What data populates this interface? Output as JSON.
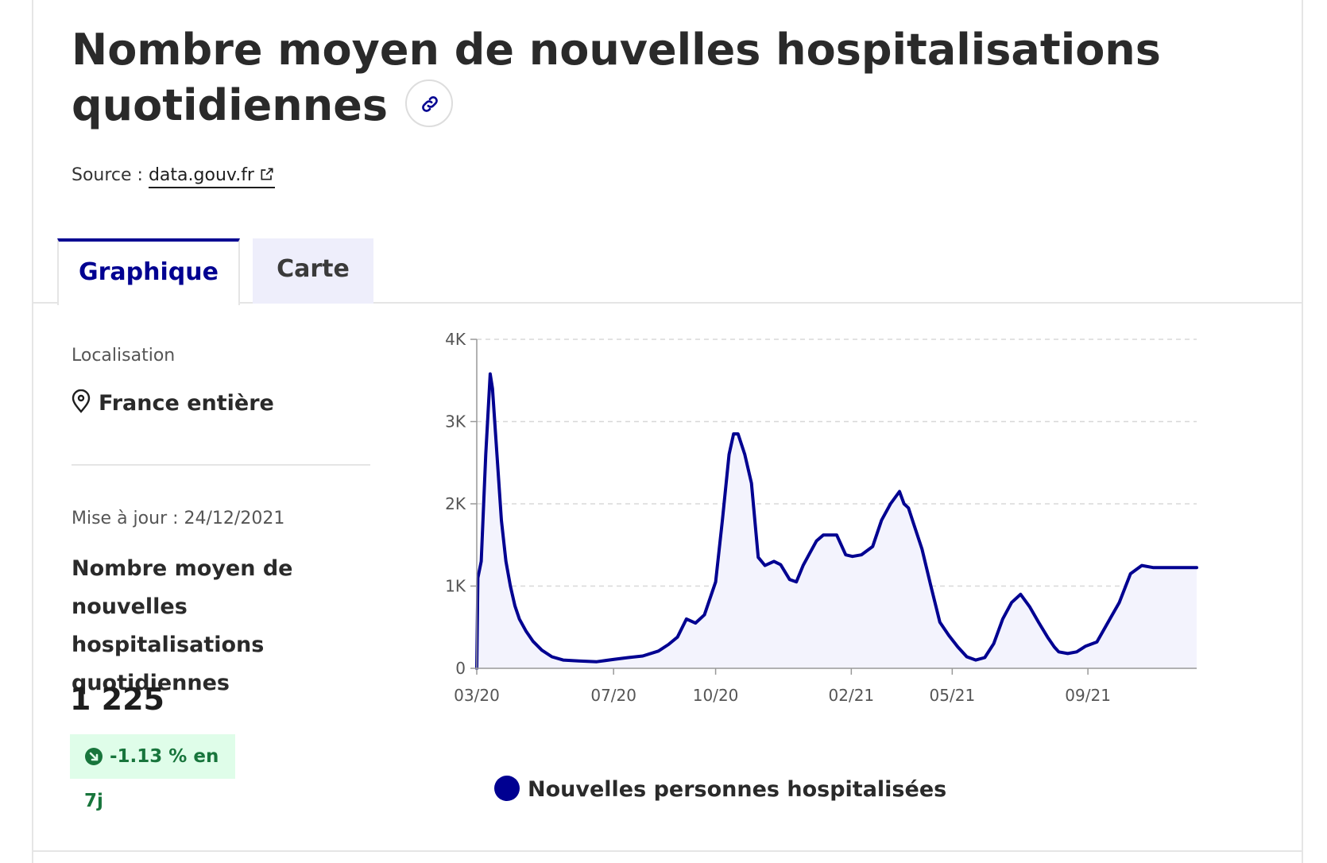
{
  "header": {
    "title": "Nombre moyen de nouvelles hospitalisations quotidiennes",
    "source_prefix": "Source : ",
    "source_link": "data.gouv.fr"
  },
  "tabs": [
    {
      "label": "Graphique",
      "active": true
    },
    {
      "label": "Carte",
      "active": false
    }
  ],
  "sidebar": {
    "location_label": "Localisation",
    "location_value": "France entière",
    "updated": "Mise à jour : 24/12/2021",
    "metric_title": "Nombre moyen de nouvelles hospitalisations quotidiennes",
    "metric_value": "1 225",
    "change": "-1.13 % en 7j"
  },
  "colors": {
    "accent": "#000091",
    "badge_bg": "#dffde9",
    "badge_text": "#18753c",
    "area_fill": "#f3f3fd"
  },
  "icons": {
    "title_link": "link-icon",
    "source": "external-link-icon",
    "location": "map-pin-icon",
    "change": "trend-down-icon"
  },
  "chart_data": {
    "type": "area",
    "grid": true,
    "legend_position": "bottom",
    "ylim": [
      0,
      4000
    ],
    "yticks": [
      {
        "value": 0,
        "label": "0"
      },
      {
        "value": 1000,
        "label": "1K"
      },
      {
        "value": 2000,
        "label": "2K"
      },
      {
        "value": 3000,
        "label": "3K"
      },
      {
        "value": 4000,
        "label": "4K"
      }
    ],
    "xticks": [
      {
        "value": "2020-03-19",
        "label": "03/20"
      },
      {
        "value": "2020-07-19",
        "label": "07/20"
      },
      {
        "value": "2020-10-18",
        "label": "10/20"
      },
      {
        "value": "2021-02-16",
        "label": "02/21"
      },
      {
        "value": "2021-05-17",
        "label": "05/21"
      },
      {
        "value": "2021-09-15",
        "label": "09/21"
      }
    ],
    "series": [
      {
        "name": "Nouvelles personnes hospitalisées",
        "color": "#000091",
        "x": [
          "2020-03-19",
          "2020-03-20",
          "2020-03-23",
          "2020-03-27",
          "2020-03-31",
          "2020-04-02",
          "2020-04-06",
          "2020-04-10",
          "2020-04-14",
          "2020-04-18",
          "2020-04-22",
          "2020-04-26",
          "2020-05-02",
          "2020-05-08",
          "2020-05-16",
          "2020-05-25",
          "2020-06-04",
          "2020-06-18",
          "2020-07-04",
          "2020-07-20",
          "2020-08-01",
          "2020-08-14",
          "2020-08-28",
          "2020-09-06",
          "2020-09-14",
          "2020-09-22",
          "2020-09-30",
          "2020-10-08",
          "2020-10-18",
          "2020-10-24",
          "2020-10-30",
          "2020-11-03",
          "2020-11-07",
          "2020-11-13",
          "2020-11-19",
          "2020-11-25",
          "2020-12-01",
          "2020-12-09",
          "2020-12-15",
          "2020-12-23",
          "2020-12-29",
          "2021-01-04",
          "2021-01-10",
          "2021-01-16",
          "2021-01-22",
          "2021-01-28",
          "2021-02-03",
          "2021-02-11",
          "2021-02-17",
          "2021-02-25",
          "2021-03-07",
          "2021-03-15",
          "2021-03-23",
          "2021-03-31",
          "2021-04-04",
          "2021-04-08",
          "2021-04-12",
          "2021-04-20",
          "2021-04-28",
          "2021-05-06",
          "2021-05-14",
          "2021-05-22",
          "2021-05-30",
          "2021-06-07",
          "2021-06-15",
          "2021-06-23",
          "2021-07-01",
          "2021-07-09",
          "2021-07-17",
          "2021-07-25",
          "2021-08-02",
          "2021-08-10",
          "2021-08-16",
          "2021-08-20",
          "2021-08-28",
          "2021-09-05",
          "2021-09-13",
          "2021-09-23",
          "2021-10-03",
          "2021-10-13",
          "2021-10-23",
          "2021-11-02",
          "2021-11-12",
          "2021-11-20",
          "2021-11-28",
          "2021-12-04",
          "2021-12-10",
          "2021-12-16",
          "2021-12-21"
        ],
        "values": [
          0,
          1100,
          1300,
          2600,
          3580,
          3400,
          2600,
          1800,
          1300,
          1000,
          760,
          600,
          450,
          330,
          220,
          140,
          100,
          90,
          80,
          110,
          130,
          150,
          210,
          290,
          380,
          600,
          550,
          650,
          1050,
          1800,
          2600,
          2850,
          2850,
          2600,
          2250,
          1350,
          1250,
          1300,
          1260,
          1080,
          1050,
          1250,
          1400,
          1550,
          1620,
          1620,
          1620,
          1380,
          1360,
          1380,
          1480,
          1800,
          2000,
          2150,
          2000,
          1950,
          1780,
          1450,
          1000,
          560,
          400,
          260,
          140,
          100,
          130,
          300,
          600,
          800,
          900,
          750,
          560,
          380,
          260,
          200,
          180,
          200,
          270,
          320,
          560,
          800,
          1150,
          1250,
          1225,
          1225,
          1225,
          1225,
          1225,
          1225,
          1225
        ]
      }
    ]
  }
}
